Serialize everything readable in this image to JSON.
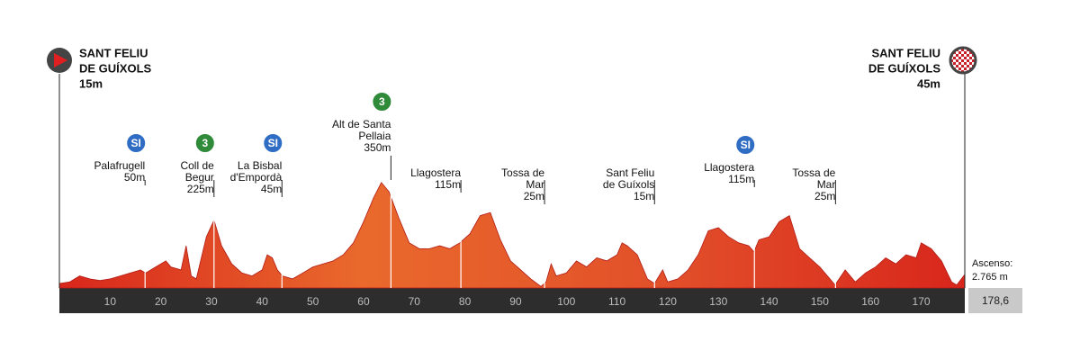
{
  "chart_data": {
    "type": "area",
    "x": [
      0,
      2,
      4,
      6,
      8,
      10,
      12,
      14,
      16,
      17,
      19,
      21,
      22,
      24,
      25,
      26,
      27,
      28,
      29,
      30.5,
      32,
      34,
      36,
      38,
      40,
      41,
      42,
      43,
      44,
      46,
      48,
      50,
      52,
      54,
      56,
      58,
      60,
      62,
      63.5,
      65,
      67,
      69,
      71,
      73,
      75,
      77,
      79,
      81,
      83,
      85,
      87,
      89,
      91,
      93,
      95,
      96,
      97,
      98,
      100,
      102,
      104,
      106,
      108,
      110,
      111,
      112,
      114,
      116,
      117.4,
      119,
      120,
      122,
      124,
      126,
      128,
      130,
      132,
      134,
      136,
      137,
      138,
      140,
      142,
      144,
      146,
      148,
      150,
      152,
      153,
      155,
      157,
      159,
      161,
      163,
      165,
      167,
      169,
      170,
      172,
      174,
      176,
      177,
      178.6
    ],
    "values": [
      15,
      20,
      40,
      30,
      25,
      30,
      40,
      50,
      60,
      50,
      70,
      90,
      70,
      60,
      140,
      40,
      30,
      100,
      170,
      225,
      140,
      80,
      50,
      40,
      60,
      110,
      100,
      60,
      40,
      30,
      50,
      70,
      80,
      90,
      110,
      150,
      220,
      300,
      350,
      320,
      230,
      150,
      130,
      130,
      140,
      130,
      150,
      180,
      240,
      250,
      160,
      90,
      60,
      30,
      5,
      20,
      80,
      40,
      50,
      90,
      70,
      100,
      90,
      110,
      150,
      140,
      110,
      30,
      15,
      60,
      20,
      30,
      60,
      110,
      190,
      200,
      170,
      150,
      140,
      120,
      160,
      170,
      220,
      240,
      130,
      100,
      70,
      30,
      10,
      60,
      20,
      50,
      70,
      100,
      80,
      110,
      100,
      150,
      130,
      90,
      20,
      10,
      45
    ],
    "colors": [
      "#d8261c",
      "#e9692c",
      "#e2502a",
      "#d8261c"
    ],
    "xlim": [
      0,
      178.6
    ],
    "ylim": [
      0,
      400
    ],
    "xticks": [
      10,
      20,
      30,
      40,
      50,
      60,
      70,
      80,
      90,
      100,
      110,
      120,
      130,
      140,
      150,
      160,
      170
    ],
    "distance": {
      "value": 178.6,
      "label": "178,6"
    },
    "ascent": {
      "label": "Ascenso:",
      "value": "2.765 m"
    },
    "start": {
      "name_lines": [
        "SANT FELIU",
        "DE GUÍXOLS"
      ],
      "altitude": "15m"
    },
    "finish": {
      "name_lines": [
        "SANT FELIU",
        "DE GUÍXOLS"
      ],
      "altitude": "45m"
    },
    "waypoints": [
      {
        "name_lines": [
          "Palafrugell"
        ],
        "altitude": "50m",
        "km": 16.9,
        "icon": "SI"
      },
      {
        "name_lines": [
          "Coll de",
          "Begur"
        ],
        "altitude": "225m",
        "km": 30.5,
        "icon": "3"
      },
      {
        "name_lines": [
          "La Bisbal",
          "d'Empordà"
        ],
        "altitude": "45m",
        "km": 43.9,
        "icon": "SI"
      },
      {
        "name_lines": [
          "Alt de Santa",
          "Pellaia"
        ],
        "altitude": "350m",
        "km": 65.4,
        "icon": "3"
      },
      {
        "name_lines": [
          "Llagostera"
        ],
        "altitude": "115m",
        "km": 79.2
      },
      {
        "name_lines": [
          "Tossa de",
          "Mar"
        ],
        "altitude": "25m",
        "km": 95.7
      },
      {
        "name_lines": [
          "Sant Feliu",
          "de Guíxols"
        ],
        "altitude": "15m",
        "km": 117.4
      },
      {
        "name_lines": [
          "Llagostera"
        ],
        "altitude": "115m",
        "km": 137.1,
        "icon": "SI"
      },
      {
        "name_lines": [
          "Tossa de",
          "Mar"
        ],
        "altitude": "25m",
        "km": 153.1
      }
    ]
  }
}
